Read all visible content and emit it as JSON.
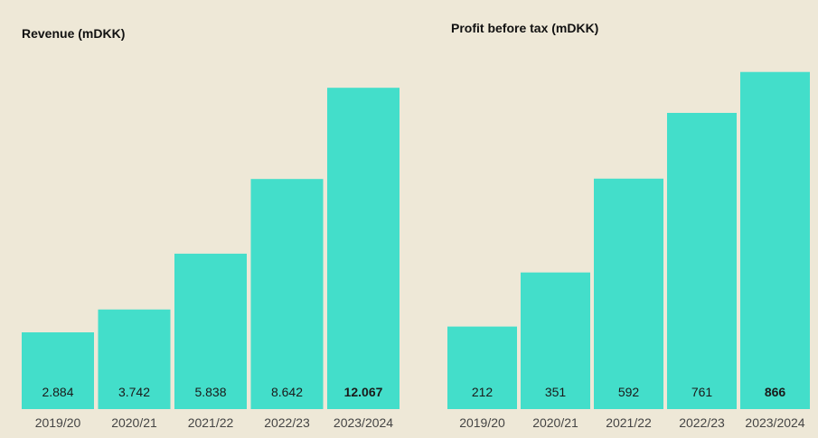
{
  "colors": {
    "bar": "#43DECA",
    "background": "#EEE8D7"
  },
  "chart_data": [
    {
      "type": "bar",
      "title": "Revenue (mDKK)",
      "categories": [
        "2019/20",
        "2020/21",
        "2021/22",
        "2022/23",
        "2023/2024"
      ],
      "values": [
        2884,
        3742,
        5838,
        8642,
        12067
      ],
      "labels": [
        "2.884",
        "3.742",
        "5.838",
        "8.642",
        "12.067"
      ],
      "highlight_index": 4,
      "xlabel": "",
      "ylabel": "",
      "ylim": [
        0,
        13500
      ]
    },
    {
      "type": "bar",
      "title": "Profit before tax (mDKK)",
      "categories": [
        "2019/20",
        "2020/21",
        "2021/22",
        "2022/23",
        "2023/2024"
      ],
      "values": [
        212,
        351,
        592,
        761,
        866
      ],
      "labels": [
        "212",
        "351",
        "592",
        "761",
        "866"
      ],
      "highlight_index": 4,
      "xlabel": "",
      "ylabel": "",
      "ylim": [
        0,
        935
      ]
    }
  ]
}
